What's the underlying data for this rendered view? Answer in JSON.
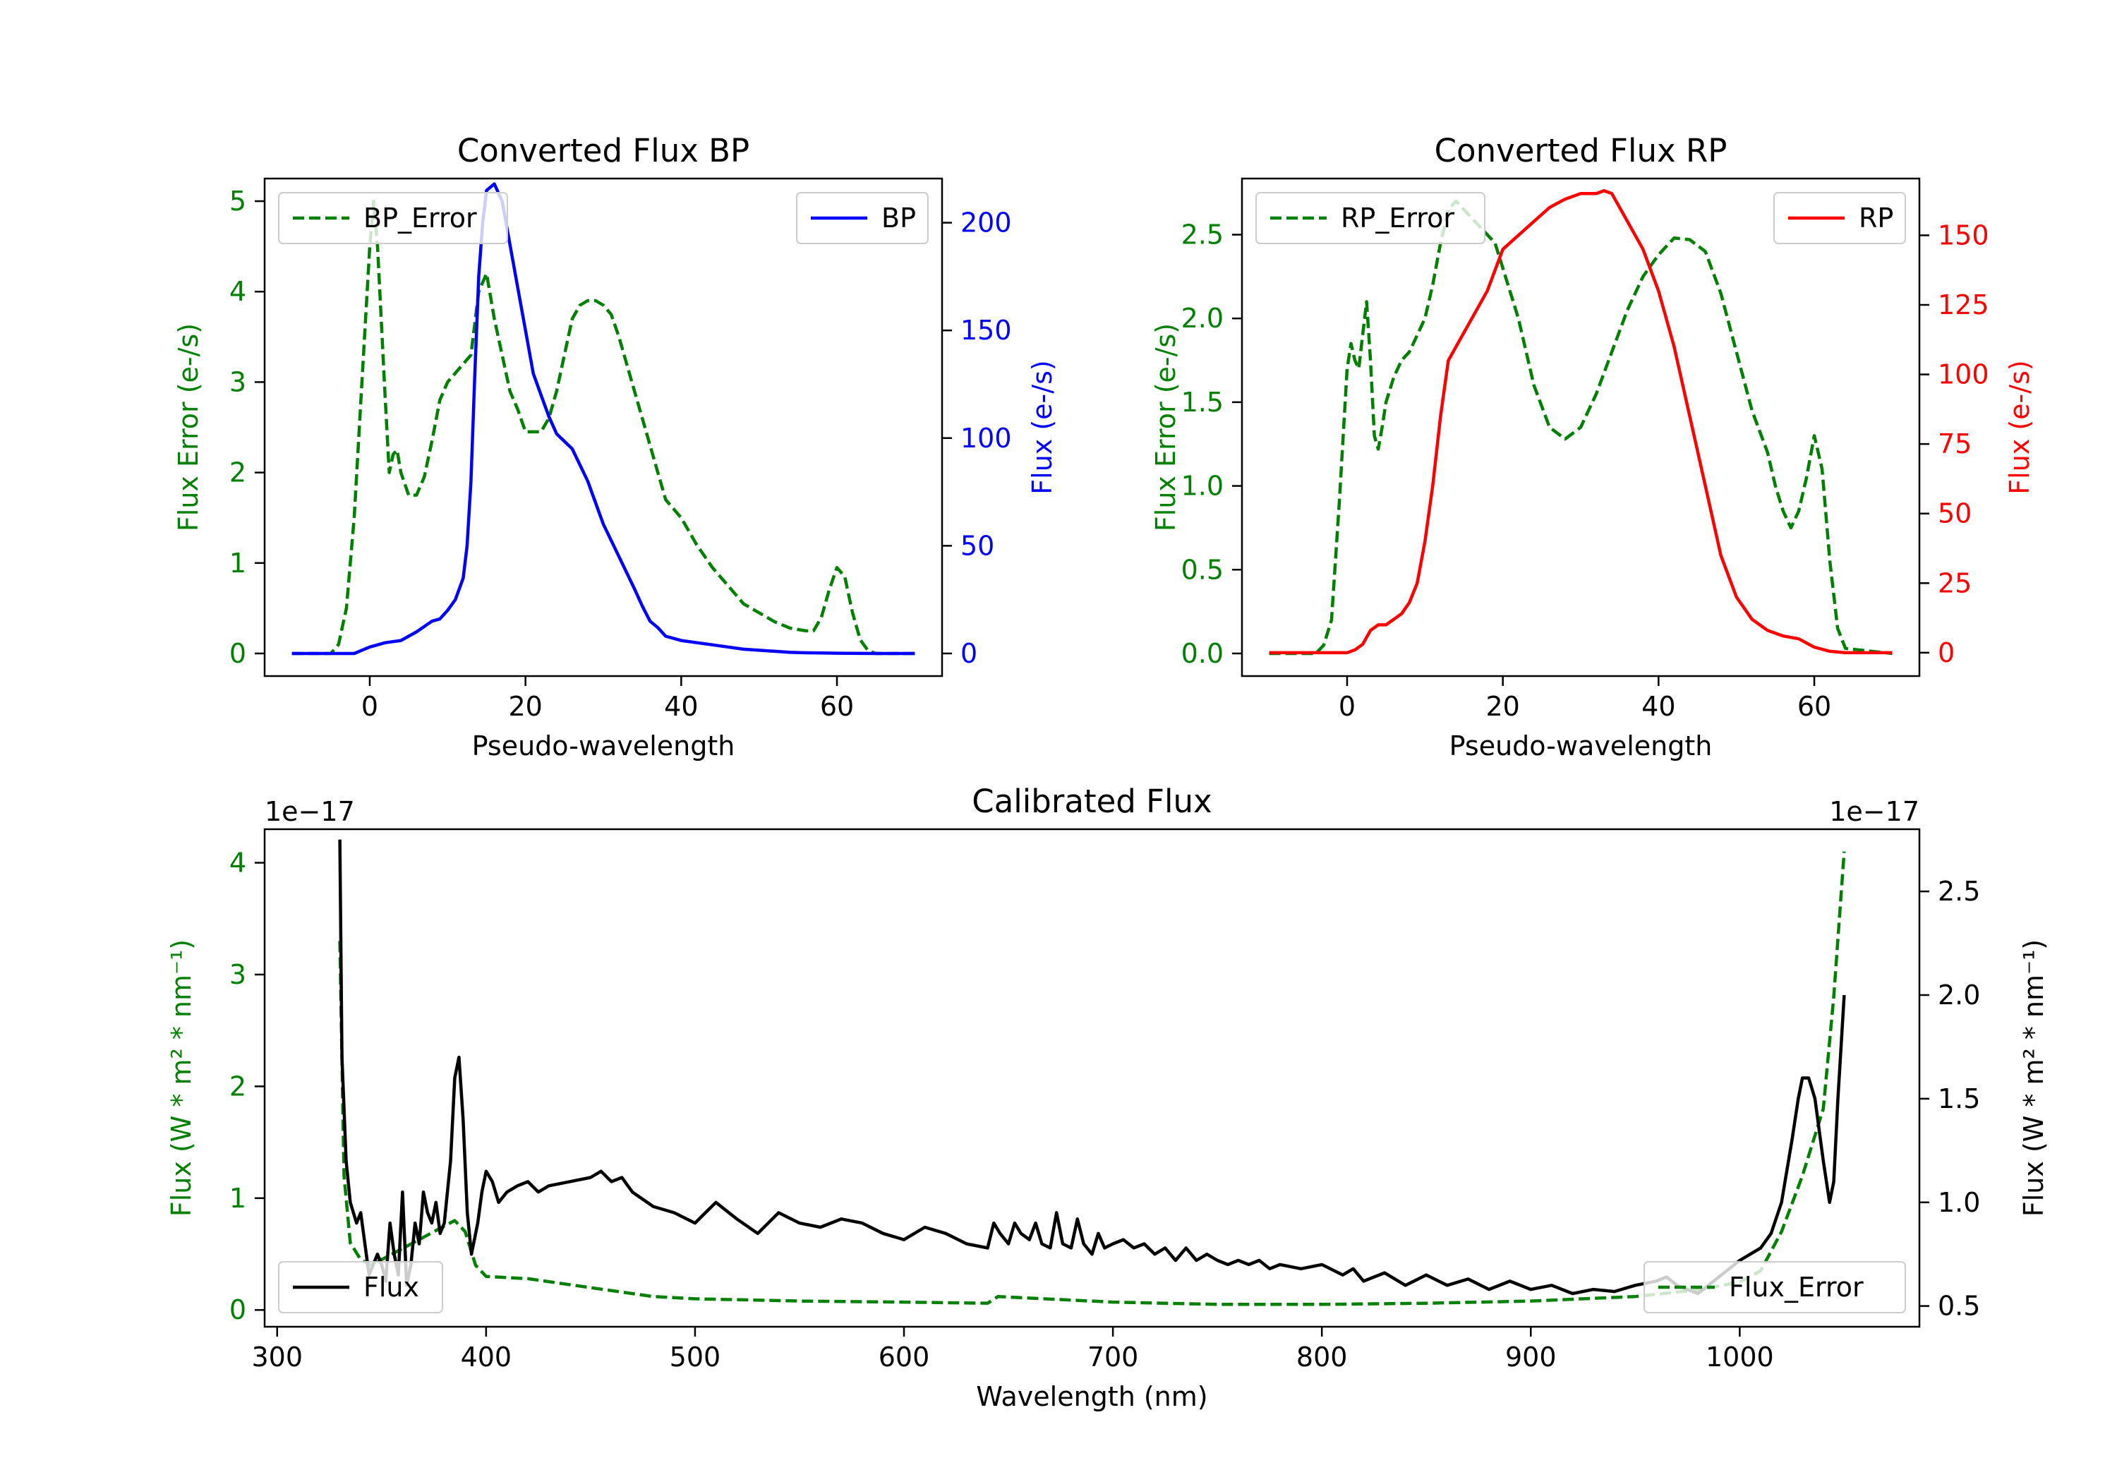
{
  "colors": {
    "error": "#008000",
    "bp": "#0000ff",
    "rp": "#ff0000",
    "flux": "#000000",
    "axis": "#000000"
  },
  "chart_data": [
    {
      "type": "line",
      "title": "Converted Flux BP",
      "xlabel": "Pseudo-wavelength",
      "ylabel_left": "Flux Error (e-/s)",
      "ylabel_right": "Flux (e-/s)",
      "xlim": [
        -13.5,
        73.5
      ],
      "ylim_left": [
        -0.25,
        5.25
      ],
      "ylim_right": [
        -10.5,
        220.5
      ],
      "xticks": [
        0,
        20,
        40,
        60
      ],
      "yticks_left": [
        0,
        1,
        2,
        3,
        4,
        5
      ],
      "yticks_right": [
        0,
        50,
        100,
        150,
        200
      ],
      "legend_left": "BP_Error",
      "legend_right": "BP",
      "series": [
        {
          "name": "BP_Error",
          "axis": "left",
          "style": "dashed",
          "color_key": "error",
          "x": [
            -10,
            -5,
            -4,
            -3,
            -2,
            -1,
            0,
            0.5,
            1,
            2,
            2.5,
            3,
            3.5,
            4,
            5,
            6,
            7,
            8,
            9,
            10,
            11,
            12,
            13,
            14,
            15,
            16,
            17,
            18,
            19,
            20,
            21,
            22,
            23,
            24,
            25,
            26,
            27,
            28,
            29,
            30,
            31,
            32,
            33,
            34,
            35,
            36,
            38,
            40,
            42,
            44,
            46,
            48,
            50,
            52,
            54,
            56,
            57,
            58,
            59,
            60,
            61,
            62,
            63,
            64,
            65,
            70
          ],
          "values": [
            0,
            0,
            0.1,
            0.5,
            1.5,
            3.0,
            4.5,
            5.0,
            4.5,
            2.8,
            2.0,
            2.2,
            2.25,
            2.0,
            1.75,
            1.75,
            1.95,
            2.35,
            2.8,
            3.0,
            3.1,
            3.2,
            3.3,
            4.0,
            4.2,
            3.7,
            3.3,
            2.9,
            2.7,
            2.45,
            2.45,
            2.45,
            2.6,
            2.9,
            3.3,
            3.7,
            3.85,
            3.9,
            3.9,
            3.85,
            3.75,
            3.5,
            3.2,
            2.9,
            2.6,
            2.3,
            1.7,
            1.5,
            1.2,
            0.95,
            0.75,
            0.55,
            0.45,
            0.35,
            0.28,
            0.25,
            0.25,
            0.4,
            0.7,
            0.95,
            0.85,
            0.45,
            0.15,
            0.03,
            0,
            0
          ]
        },
        {
          "name": "BP",
          "axis": "right",
          "style": "solid",
          "color_key": "bp",
          "x": [
            -10,
            -5,
            -2,
            0,
            2,
            4,
            6,
            8,
            9,
            10,
            11,
            12,
            12.5,
            13,
            13.5,
            14,
            14.5,
            15,
            16,
            17,
            18,
            19,
            20,
            21,
            22,
            23,
            24,
            26,
            28,
            30,
            32,
            34,
            35,
            36,
            37,
            38,
            40,
            42,
            44,
            46,
            48,
            50,
            52,
            54,
            56,
            58,
            60,
            65,
            70
          ],
          "values": [
            0,
            0,
            0,
            3,
            5,
            6,
            10,
            15,
            16,
            20,
            25,
            35,
            50,
            80,
            130,
            175,
            200,
            215,
            218,
            210,
            190,
            170,
            150,
            130,
            120,
            110,
            102,
            95,
            80,
            60,
            45,
            30,
            22,
            15,
            12,
            8,
            6,
            5,
            4,
            3,
            2,
            1.5,
            1,
            0.5,
            0.3,
            0.2,
            0.1,
            0,
            0
          ]
        }
      ]
    },
    {
      "type": "line",
      "title": "Converted Flux RP",
      "xlabel": "Pseudo-wavelength",
      "ylabel_left": "Flux Error (e-/s)",
      "ylabel_right": "Flux (e-/s)",
      "xlim": [
        -13.5,
        73.5
      ],
      "ylim_left": [
        -0.135,
        2.835
      ],
      "ylim_right": [
        -8.4,
        170.4
      ],
      "xticks": [
        0,
        20,
        40,
        60
      ],
      "yticks_left": [
        0.0,
        0.5,
        1.0,
        1.5,
        2.0,
        2.5
      ],
      "yticks_right": [
        0,
        25,
        50,
        75,
        100,
        125,
        150
      ],
      "legend_left": "RP_Error",
      "legend_right": "RP",
      "series": [
        {
          "name": "RP_Error",
          "axis": "left",
          "style": "dashed",
          "color_key": "error",
          "x": [
            -10,
            -4,
            -3,
            -2,
            -1,
            0,
            0.5,
            1,
            1.5,
            2,
            2.5,
            3,
            3.5,
            4,
            4.5,
            5,
            6,
            7,
            8,
            9,
            10,
            11,
            12,
            13,
            14,
            15,
            16,
            17,
            18,
            19,
            20,
            22,
            24,
            26,
            28,
            30,
            32,
            34,
            36,
            38,
            40,
            42,
            44,
            46,
            48,
            50,
            52,
            54,
            55,
            56,
            57,
            58,
            59,
            60,
            61,
            62,
            63,
            64,
            70
          ],
          "values": [
            0,
            0,
            0.05,
            0.2,
            0.9,
            1.7,
            1.85,
            1.75,
            1.7,
            1.9,
            2.1,
            1.75,
            1.3,
            1.22,
            1.35,
            1.5,
            1.65,
            1.75,
            1.8,
            1.9,
            2.0,
            2.2,
            2.45,
            2.65,
            2.7,
            2.65,
            2.6,
            2.55,
            2.5,
            2.45,
            2.3,
            2.0,
            1.6,
            1.35,
            1.28,
            1.35,
            1.55,
            1.8,
            2.05,
            2.25,
            2.38,
            2.48,
            2.47,
            2.4,
            2.15,
            1.8,
            1.45,
            1.2,
            1.0,
            0.85,
            0.75,
            0.85,
            1.05,
            1.3,
            1.1,
            0.55,
            0.15,
            0.03,
            0
          ]
        },
        {
          "name": "RP",
          "axis": "right",
          "style": "solid",
          "color_key": "rp",
          "x": [
            -10,
            -5,
            -2,
            0,
            1,
            2,
            3,
            4,
            5,
            6,
            7,
            8,
            9,
            10,
            11,
            12,
            13,
            14,
            15,
            16,
            18,
            20,
            22,
            24,
            26,
            28,
            30,
            32,
            33,
            34,
            35,
            36,
            38,
            40,
            42,
            44,
            46,
            48,
            50,
            52,
            54,
            55,
            56,
            58,
            60,
            62,
            64,
            70
          ],
          "values": [
            0,
            0,
            0,
            0,
            1,
            3,
            8,
            10,
            10,
            12,
            14,
            18,
            25,
            40,
            60,
            85,
            105,
            110,
            115,
            120,
            130,
            145,
            150,
            155,
            160,
            163,
            165,
            165,
            166,
            165,
            160,
            155,
            145,
            130,
            110,
            85,
            60,
            35,
            20,
            12,
            8,
            7,
            6,
            5,
            2,
            0.5,
            0,
            0
          ]
        }
      ]
    },
    {
      "type": "line",
      "title": "Calibrated Flux",
      "xlabel": "Wavelength (nm)",
      "ylabel_left": "Flux (W * m² * nm⁻¹)",
      "ylabel_right": "Flux (W * m² * nm⁻¹)",
      "offset_left": "1e−17",
      "offset_right": "1e−17",
      "xlim": [
        294,
        1086
      ],
      "ylim_left": [
        -0.15,
        4.3
      ],
      "ylim_right": [
        0.4,
        2.8
      ],
      "xticks": [
        300,
        400,
        500,
        600,
        700,
        800,
        900,
        1000
      ],
      "yticks_left": [
        0,
        1,
        2,
        3,
        4
      ],
      "yticks_right": [
        0.5,
        1.0,
        1.5,
        2.0,
        2.5
      ],
      "legend_left": "Flux",
      "legend_right": "Flux_Error",
      "series": [
        {
          "name": "Flux_Error",
          "axis": "left",
          "style": "dashed",
          "color_key": "error",
          "x": [
            330,
            332,
            335,
            340,
            345,
            350,
            355,
            360,
            365,
            370,
            375,
            380,
            385,
            390,
            395,
            400,
            420,
            450,
            480,
            500,
            550,
            600,
            640,
            645,
            700,
            750,
            800,
            850,
            900,
            950,
            980,
            1000,
            1010,
            1020,
            1030,
            1040,
            1045,
            1050
          ],
          "values": [
            3.3,
            1.2,
            0.6,
            0.45,
            0.4,
            0.45,
            0.5,
            0.55,
            0.6,
            0.65,
            0.7,
            0.75,
            0.8,
            0.7,
            0.4,
            0.3,
            0.28,
            0.2,
            0.12,
            0.1,
            0.08,
            0.07,
            0.06,
            0.12,
            0.07,
            0.05,
            0.05,
            0.06,
            0.08,
            0.12,
            0.18,
            0.25,
            0.35,
            0.7,
            1.2,
            1.8,
            2.8,
            4.1
          ]
        },
        {
          "name": "Flux",
          "axis": "right",
          "style": "solid",
          "color_key": "flux",
          "x": [
            330,
            331,
            333,
            335,
            338,
            340,
            342,
            344,
            346,
            348,
            350,
            352,
            354,
            356,
            358,
            360,
            362,
            364,
            366,
            368,
            370,
            372,
            374,
            376,
            378,
            380,
            383,
            385,
            387,
            389,
            391,
            393,
            396,
            398,
            400,
            403,
            406,
            410,
            415,
            420,
            425,
            430,
            440,
            450,
            455,
            460,
            465,
            470,
            480,
            490,
            500,
            505,
            510,
            520,
            530,
            540,
            550,
            560,
            570,
            580,
            590,
            600,
            610,
            620,
            630,
            640,
            643,
            646,
            650,
            653,
            656,
            660,
            663,
            666,
            670,
            673,
            676,
            680,
            683,
            686,
            690,
            693,
            696,
            700,
            705,
            710,
            715,
            720,
            725,
            730,
            735,
            740,
            745,
            750,
            755,
            760,
            765,
            770,
            775,
            780,
            790,
            800,
            810,
            815,
            820,
            830,
            840,
            850,
            860,
            870,
            880,
            890,
            900,
            910,
            920,
            930,
            940,
            950,
            960,
            965,
            970,
            975,
            980,
            985,
            990,
            1000,
            1005,
            1010,
            1015,
            1020,
            1025,
            1028,
            1030,
            1033,
            1036,
            1040,
            1043,
            1045,
            1047,
            1050
          ],
          "values": [
            2.75,
            1.7,
            1.2,
            1.0,
            0.9,
            0.95,
            0.8,
            0.65,
            0.7,
            0.75,
            0.7,
            0.62,
            0.9,
            0.75,
            0.65,
            1.05,
            0.6,
            0.7,
            0.9,
            0.8,
            1.05,
            0.95,
            0.9,
            1.0,
            0.85,
            0.9,
            1.2,
            1.6,
            1.7,
            1.4,
            0.95,
            0.75,
            0.9,
            1.05,
            1.15,
            1.1,
            1.0,
            1.05,
            1.08,
            1.1,
            1.05,
            1.08,
            1.1,
            1.12,
            1.15,
            1.1,
            1.12,
            1.05,
            0.98,
            0.95,
            0.9,
            0.95,
            1.0,
            0.92,
            0.85,
            0.95,
            0.9,
            0.88,
            0.92,
            0.9,
            0.85,
            0.82,
            0.88,
            0.85,
            0.8,
            0.78,
            0.9,
            0.85,
            0.8,
            0.9,
            0.85,
            0.82,
            0.9,
            0.8,
            0.78,
            0.95,
            0.8,
            0.78,
            0.92,
            0.8,
            0.75,
            0.85,
            0.78,
            0.8,
            0.82,
            0.78,
            0.8,
            0.75,
            0.78,
            0.72,
            0.78,
            0.72,
            0.75,
            0.72,
            0.7,
            0.72,
            0.7,
            0.72,
            0.68,
            0.7,
            0.68,
            0.7,
            0.65,
            0.68,
            0.62,
            0.66,
            0.6,
            0.65,
            0.6,
            0.63,
            0.58,
            0.62,
            0.58,
            0.6,
            0.56,
            0.58,
            0.57,
            0.6,
            0.62,
            0.64,
            0.6,
            0.58,
            0.56,
            0.6,
            0.64,
            0.72,
            0.75,
            0.78,
            0.85,
            1.0,
            1.3,
            1.5,
            1.6,
            1.6,
            1.5,
            1.2,
            1.0,
            1.1,
            1.5,
            2.0
          ]
        }
      ]
    }
  ]
}
